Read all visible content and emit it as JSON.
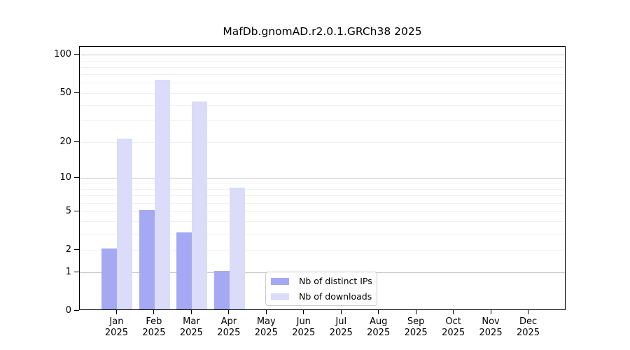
{
  "title": "MafDb.gnomAD.r2.0.1.GRCh38 2025",
  "chart_data": {
    "type": "bar",
    "title": "MafDb.gnomAD.r2.0.1.GRCh38 2025",
    "xlabel": "",
    "ylabel": "",
    "categories": [
      "Jan 2025",
      "Feb 2025",
      "Mar 2025",
      "Apr 2025",
      "May 2025",
      "Jun 2025",
      "Jul 2025",
      "Aug 2025",
      "Sep 2025",
      "Oct 2025",
      "Nov 2025",
      "Dec 2025"
    ],
    "series": [
      {
        "name": "Nb of distinct IPs",
        "color": "#a5a9f3",
        "values": [
          2,
          5,
          3,
          1,
          0,
          0,
          0,
          0,
          0,
          0,
          0,
          0
        ]
      },
      {
        "name": "Nb of downloads",
        "color": "#dadcfa",
        "values": [
          21,
          62,
          42,
          8,
          0,
          0,
          0,
          0,
          0,
          0,
          0,
          0
        ]
      }
    ],
    "yscale": "log1p",
    "ylim": [
      0,
      116
    ],
    "y_ticks": [
      0,
      1,
      2,
      5,
      10,
      20,
      50,
      100
    ],
    "y_gridlines_major": [
      1,
      10,
      100
    ],
    "y_gridlines_minor": [
      2,
      3,
      4,
      5,
      6,
      7,
      8,
      9,
      20,
      30,
      40,
      50,
      60,
      70,
      80,
      90
    ],
    "grid": "horizontal",
    "legend_position": "lower-center-inside"
  },
  "legend": {
    "items": [
      {
        "label": "Nb of distinct IPs"
      },
      {
        "label": "Nb of downloads"
      }
    ]
  },
  "colors": {
    "distinct_ips_bar": "#a5a9f3",
    "downloads_bar": "#dadcfa",
    "major_grid": "#c6c6c6",
    "minor_grid": "#f0f0f0",
    "axis": "#000000",
    "legend_border": "#cccccc"
  }
}
